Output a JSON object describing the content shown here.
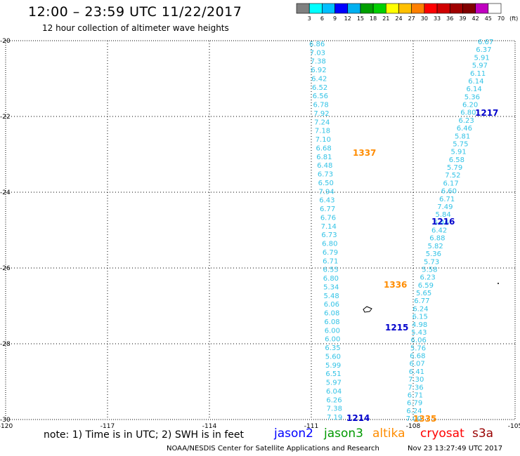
{
  "header": {
    "title": "12:00 – 23:59 UTC 11/22/2017",
    "subtitle": "12 hour collection of altimeter wave heights"
  },
  "colorbar": {
    "labels": [
      "3",
      "6",
      "9",
      "12",
      "15",
      "18",
      "21",
      "24",
      "27",
      "30",
      "33",
      "36",
      "39",
      "42",
      "45",
      "70",
      "(ft)"
    ],
    "colors": [
      "#808080",
      "#00ffff",
      "#00bfff",
      "#0000ff",
      "#00b0f0",
      "#00a000",
      "#00d000",
      "#ffff00",
      "#ffc000",
      "#ff8000",
      "#ff0000",
      "#d00000",
      "#a00000",
      "#800000",
      "#c000c0",
      "#ffffff"
    ]
  },
  "map": {
    "lat_ticks": [
      "-20",
      "-22",
      "-24",
      "-26",
      "-28",
      "-30"
    ],
    "lon_ticks": [
      "-120",
      "-117",
      "-114",
      "-111",
      "-108",
      "-105"
    ],
    "lat_range": [
      -30,
      -20
    ],
    "lon_range": [
      -120,
      -105
    ]
  },
  "tracks": {
    "descending": {
      "color": "#33c3e6",
      "heights": [
        "6.86",
        "7.03",
        "7.38",
        "6.92",
        "6.42",
        "6.52",
        "6.56",
        "6.78",
        "7.92",
        "7.24",
        "7.18",
        "7.10",
        "6.68",
        "6.81",
        "6.48",
        "6.73",
        "6.50",
        "7.94",
        "6.43",
        "6.77",
        "6.76",
        "7.14",
        "6.73",
        "6.80",
        "6.79",
        "6.71",
        "6.55",
        "6.80",
        "5.34",
        "5.48",
        "6.06",
        "6.08",
        "6.08",
        "6.00",
        "6.00",
        "6.35",
        "5.60",
        "5.99",
        "6.51",
        "5.97",
        "6.04",
        "6.26",
        "7.38",
        "7.19"
      ]
    },
    "ascending": {
      "color": "#33c3e6",
      "heights": [
        "6.67",
        "6.37",
        "5.91",
        "5.97",
        "6.11",
        "6.14",
        "6.14",
        "5.36",
        "6.20",
        "6.80",
        "6.23",
        "6.46",
        "5.81",
        "5.75",
        "5.91",
        "6.58",
        "5.79",
        "7.52",
        "6.17",
        "6.60",
        "6.71",
        "7.49",
        "5.84",
        "6.46",
        "6.42",
        "6.88",
        "5.82",
        "5.36",
        "5.73",
        "5.58",
        "6.23",
        "6.59",
        "5.65",
        "6.77",
        "6.24",
        "6.15",
        "4.98",
        "5.43",
        "6.06",
        "5.76",
        "6.68",
        "6.07",
        "6.41",
        "7.30",
        "7.36",
        "6.71",
        "6.79",
        "6.24",
        "7.00"
      ]
    }
  },
  "pass_labels": [
    {
      "text": "1217",
      "color": "#0000cc"
    },
    {
      "text": "1337",
      "color": "#ff8c00"
    },
    {
      "text": "1216",
      "color": "#0000cc"
    },
    {
      "text": "1336",
      "color": "#ff8c00"
    },
    {
      "text": "1215",
      "color": "#0000cc"
    },
    {
      "text": "1214",
      "color": "#0000cc"
    },
    {
      "text": "1335",
      "color": "#ff8c00"
    }
  ],
  "note": "note: 1) Time is in UTC; 2) SWH is in feet",
  "legend": [
    {
      "name": "jason2",
      "color": "#0000ff"
    },
    {
      "name": "jason3",
      "color": "#009900"
    },
    {
      "name": "altika",
      "color": "#ff8c00"
    },
    {
      "name": "cryosat",
      "color": "#ff0000"
    },
    {
      "name": "s3a",
      "color": "#990000"
    }
  ],
  "footer": {
    "credit": "NOAA/NESDIS Center for Satellite Applications and Research",
    "timestamp": "Nov 23 13:27:49 UTC 2017"
  }
}
